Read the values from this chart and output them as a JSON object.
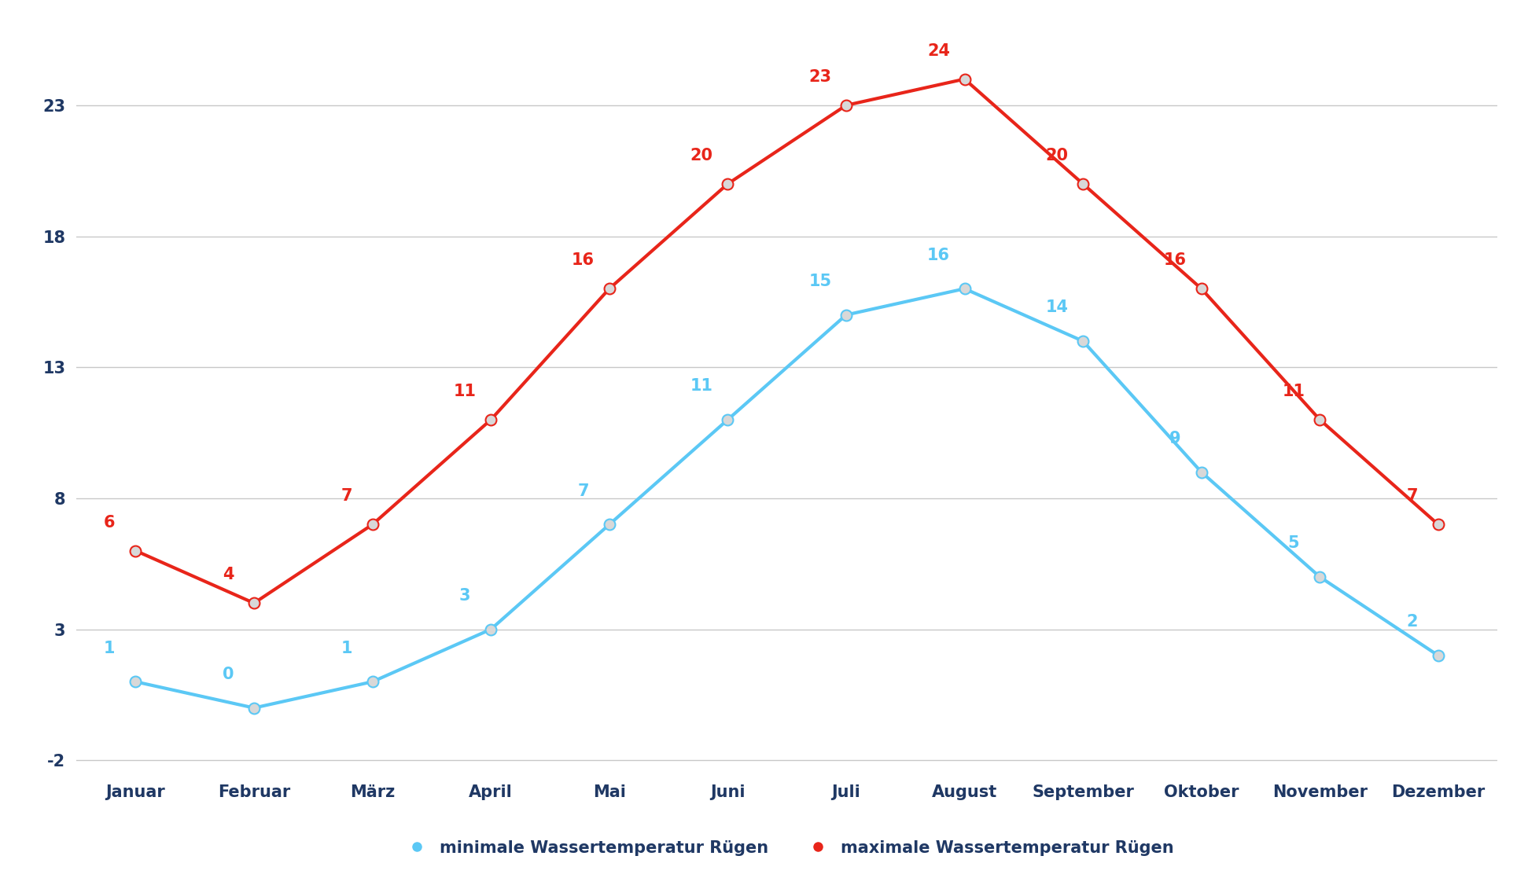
{
  "months": [
    "Januar",
    "Februar",
    "März",
    "April",
    "Mai",
    "Juni",
    "Juli",
    "August",
    "September",
    "Oktober",
    "November",
    "Dezember"
  ],
  "min_temps": [
    1,
    0,
    1,
    3,
    7,
    11,
    15,
    16,
    14,
    9,
    5,
    2
  ],
  "max_temps": [
    6,
    4,
    7,
    11,
    16,
    20,
    23,
    24,
    20,
    16,
    11,
    7
  ],
  "min_color": "#5bc8f5",
  "max_color": "#e8251a",
  "min_label": "minimale Wassertemperatur Rügen",
  "max_label": "maximale Wassertemperatur Rügen",
  "label_color": "#1f3864",
  "ylim": [
    -2.5,
    26
  ],
  "yticks": [
    -2,
    3,
    8,
    13,
    18,
    23
  ],
  "background_color": "#ffffff",
  "grid_color": "#c8c8c8",
  "line_width": 3.0,
  "marker_size": 10,
  "annotation_fontsize": 15,
  "axis_label_fontsize": 15,
  "legend_fontsize": 15,
  "tick_label_color": "#1f3864"
}
